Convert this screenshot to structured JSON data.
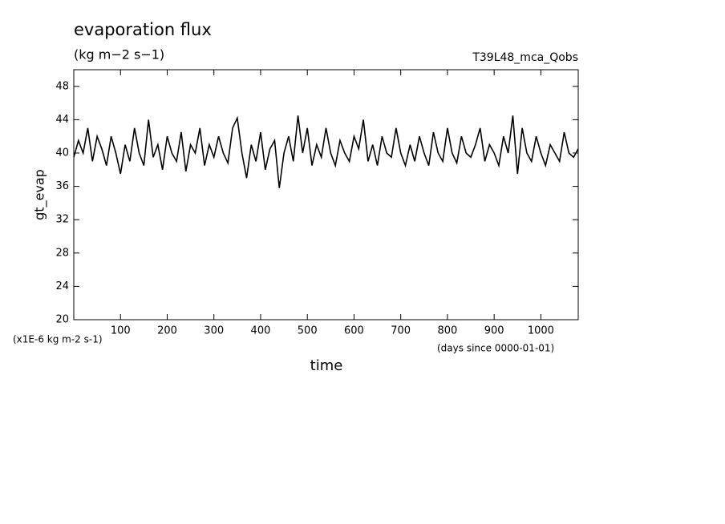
{
  "chart_data": {
    "type": "line",
    "title": "evaporation flux",
    "subtitle": "(kg m−2 s−1)",
    "run_label": "T39L48_mca_Qobs",
    "ylabel": "gt_evap",
    "xlabel": "time",
    "y_unit_note": "(x1E-6 kg m-2 s-1)",
    "x_unit_note": "(days since 0000-01-01)",
    "color": "#000000",
    "xlim": [
      0,
      1080
    ],
    "ylim": [
      20,
      50
    ],
    "xticks": [
      100,
      200,
      300,
      400,
      500,
      600,
      700,
      800,
      900,
      1000
    ],
    "yticks": [
      20,
      24,
      28,
      32,
      36,
      40,
      44,
      48
    ],
    "x": [
      0,
      10,
      20,
      30,
      40,
      50,
      60,
      70,
      80,
      90,
      100,
      110,
      120,
      130,
      140,
      150,
      160,
      170,
      180,
      190,
      200,
      210,
      220,
      230,
      240,
      250,
      260,
      270,
      280,
      290,
      300,
      310,
      320,
      330,
      340,
      350,
      360,
      370,
      380,
      390,
      400,
      410,
      420,
      430,
      440,
      450,
      460,
      470,
      480,
      490,
      500,
      510,
      520,
      530,
      540,
      550,
      560,
      570,
      580,
      590,
      600,
      610,
      620,
      630,
      640,
      650,
      660,
      670,
      680,
      690,
      700,
      710,
      720,
      730,
      740,
      750,
      760,
      770,
      780,
      790,
      800,
      810,
      820,
      830,
      840,
      850,
      860,
      870,
      880,
      890,
      900,
      910,
      920,
      930,
      940,
      950,
      960,
      970,
      980,
      990,
      1000,
      1010,
      1020,
      1030,
      1040,
      1050,
      1060,
      1070,
      1080
    ],
    "values": [
      39.5,
      41.5,
      40,
      43,
      39,
      42,
      40.5,
      38.5,
      42,
      40,
      37.5,
      41,
      39,
      43,
      40,
      38.5,
      44,
      39.5,
      41,
      38,
      42,
      40,
      39,
      42.5,
      37.8,
      41,
      40,
      43,
      38.5,
      41,
      39.5,
      42,
      40,
      38.8,
      43,
      44.2,
      40,
      37,
      41,
      39,
      42.5,
      38,
      40.5,
      41.5,
      35.8,
      40,
      42,
      39,
      44.5,
      40,
      43,
      38.5,
      41,
      39.5,
      43,
      40,
      38.5,
      41.5,
      40,
      39,
      42,
      40.5,
      44,
      39,
      41,
      38.5,
      42,
      40,
      39.5,
      43,
      40,
      38.5,
      41,
      39,
      42,
      40,
      38.5,
      42.5,
      40,
      39,
      43,
      40,
      38.8,
      42,
      40,
      39.5,
      41,
      43,
      39,
      41,
      40,
      38.5,
      42,
      40,
      44.5,
      37.5,
      43,
      40,
      39,
      42,
      40,
      38.5,
      41,
      40,
      39,
      42.5,
      40,
      39.5,
      40.5
    ]
  }
}
